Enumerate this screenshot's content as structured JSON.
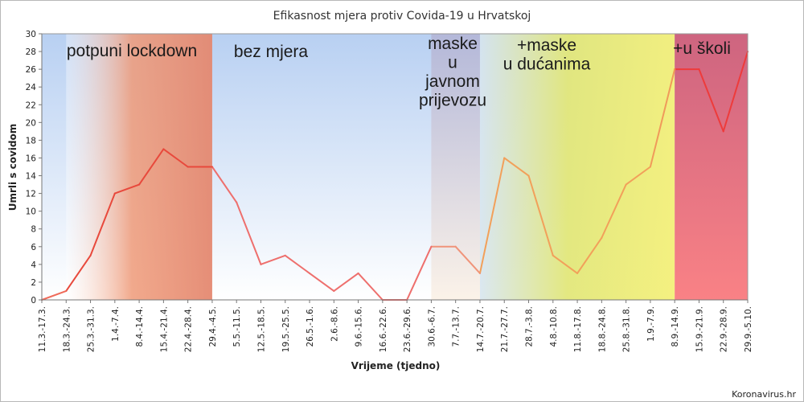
{
  "chart_data": {
    "type": "line",
    "title": "Efikasnost mjera protiv Covida-19 u Hrvatskoj",
    "xlabel": "Vrijeme (tjedno)",
    "ylabel": "Umrli s covidom",
    "ylim": [
      0,
      30
    ],
    "ytick_step": 2,
    "grid": false,
    "source": "Koronavirus.hr",
    "categories": [
      "11.3.-17.3.",
      "18.3.-24.3.",
      "25.3.-31.3.",
      "1.4.-7.4.",
      "8.4.-14.4.",
      "15.4.-21.4.",
      "22.4.-28.4.",
      "29.4.-4.5.",
      "5.5.-11.5.",
      "12.5.-18.5.",
      "19.5.-25.5.",
      "26.5.-1.6.",
      "2.6.-8.6.",
      "9.6.-15.6.",
      "16.6.-22.6.",
      "23.6.-29.6.",
      "30.6.-6.7.",
      "7.7.-13.7.",
      "14.7.-20.7.",
      "21.7.-27.7.",
      "28.7.-3.8.",
      "4.8.-10.8.",
      "11.8.-17.8.",
      "18.8.-24.8.",
      "25.8.-31.8.",
      "1.9.-7.9.",
      "8.9.-14.9.",
      "15.9.-21.9.",
      "22.9.-28.9.",
      "29.9.-5.10."
    ],
    "series": [
      {
        "values": [
          0,
          1,
          5,
          12,
          13,
          17,
          15,
          15,
          11,
          4,
          5,
          3,
          1,
          3,
          0,
          0,
          6,
          6,
          3,
          16,
          14,
          5,
          3,
          7,
          13,
          15,
          26,
          26,
          19,
          28
        ]
      }
    ],
    "zones": [
      {
        "label": "potpuni lockdown",
        "from": "18.3.-24.3.",
        "to": "29.4.-4.5.",
        "color": "#e9856f"
      },
      {
        "label": "bez mjera",
        "from": "29.4.-4.5.",
        "to": "30.6.-6.7.",
        "color": "#c7d8f2"
      },
      {
        "label": "maske\nu\njavnom\nprijevozu",
        "from": "30.6.-6.7.",
        "to": "14.7.-20.7.",
        "color": "#b9b7d3"
      },
      {
        "label": "+maske\nu dućanima",
        "from": "14.7.-20.7.",
        "to": "8.9.-14.9.",
        "color": "#e3e37a"
      },
      {
        "label": "+u školi",
        "from": "8.9.-14.9.",
        "to": "29.9.-5.10.",
        "color": "#df6a79"
      }
    ]
  }
}
